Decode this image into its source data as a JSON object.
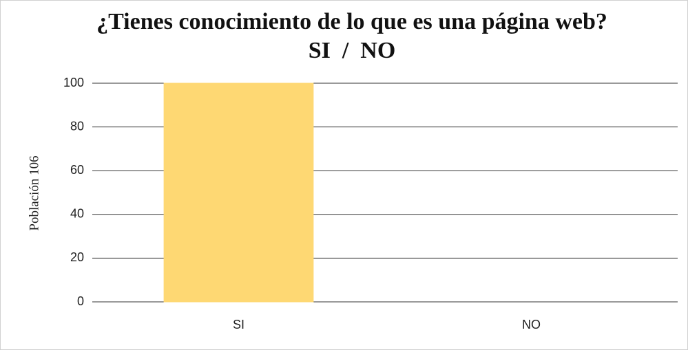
{
  "chart_data": {
    "type": "bar",
    "title": "¿Tienes conocimiento de lo que es una página web?  SI  /  NO",
    "y_label": "Población 106",
    "categories": [
      "SI",
      "NO"
    ],
    "values": [
      100,
      0
    ],
    "color": "#fed873",
    "ylim": [
      0,
      100
    ],
    "yticks": [
      0,
      20,
      40,
      60,
      80,
      100
    ],
    "grid": true
  }
}
